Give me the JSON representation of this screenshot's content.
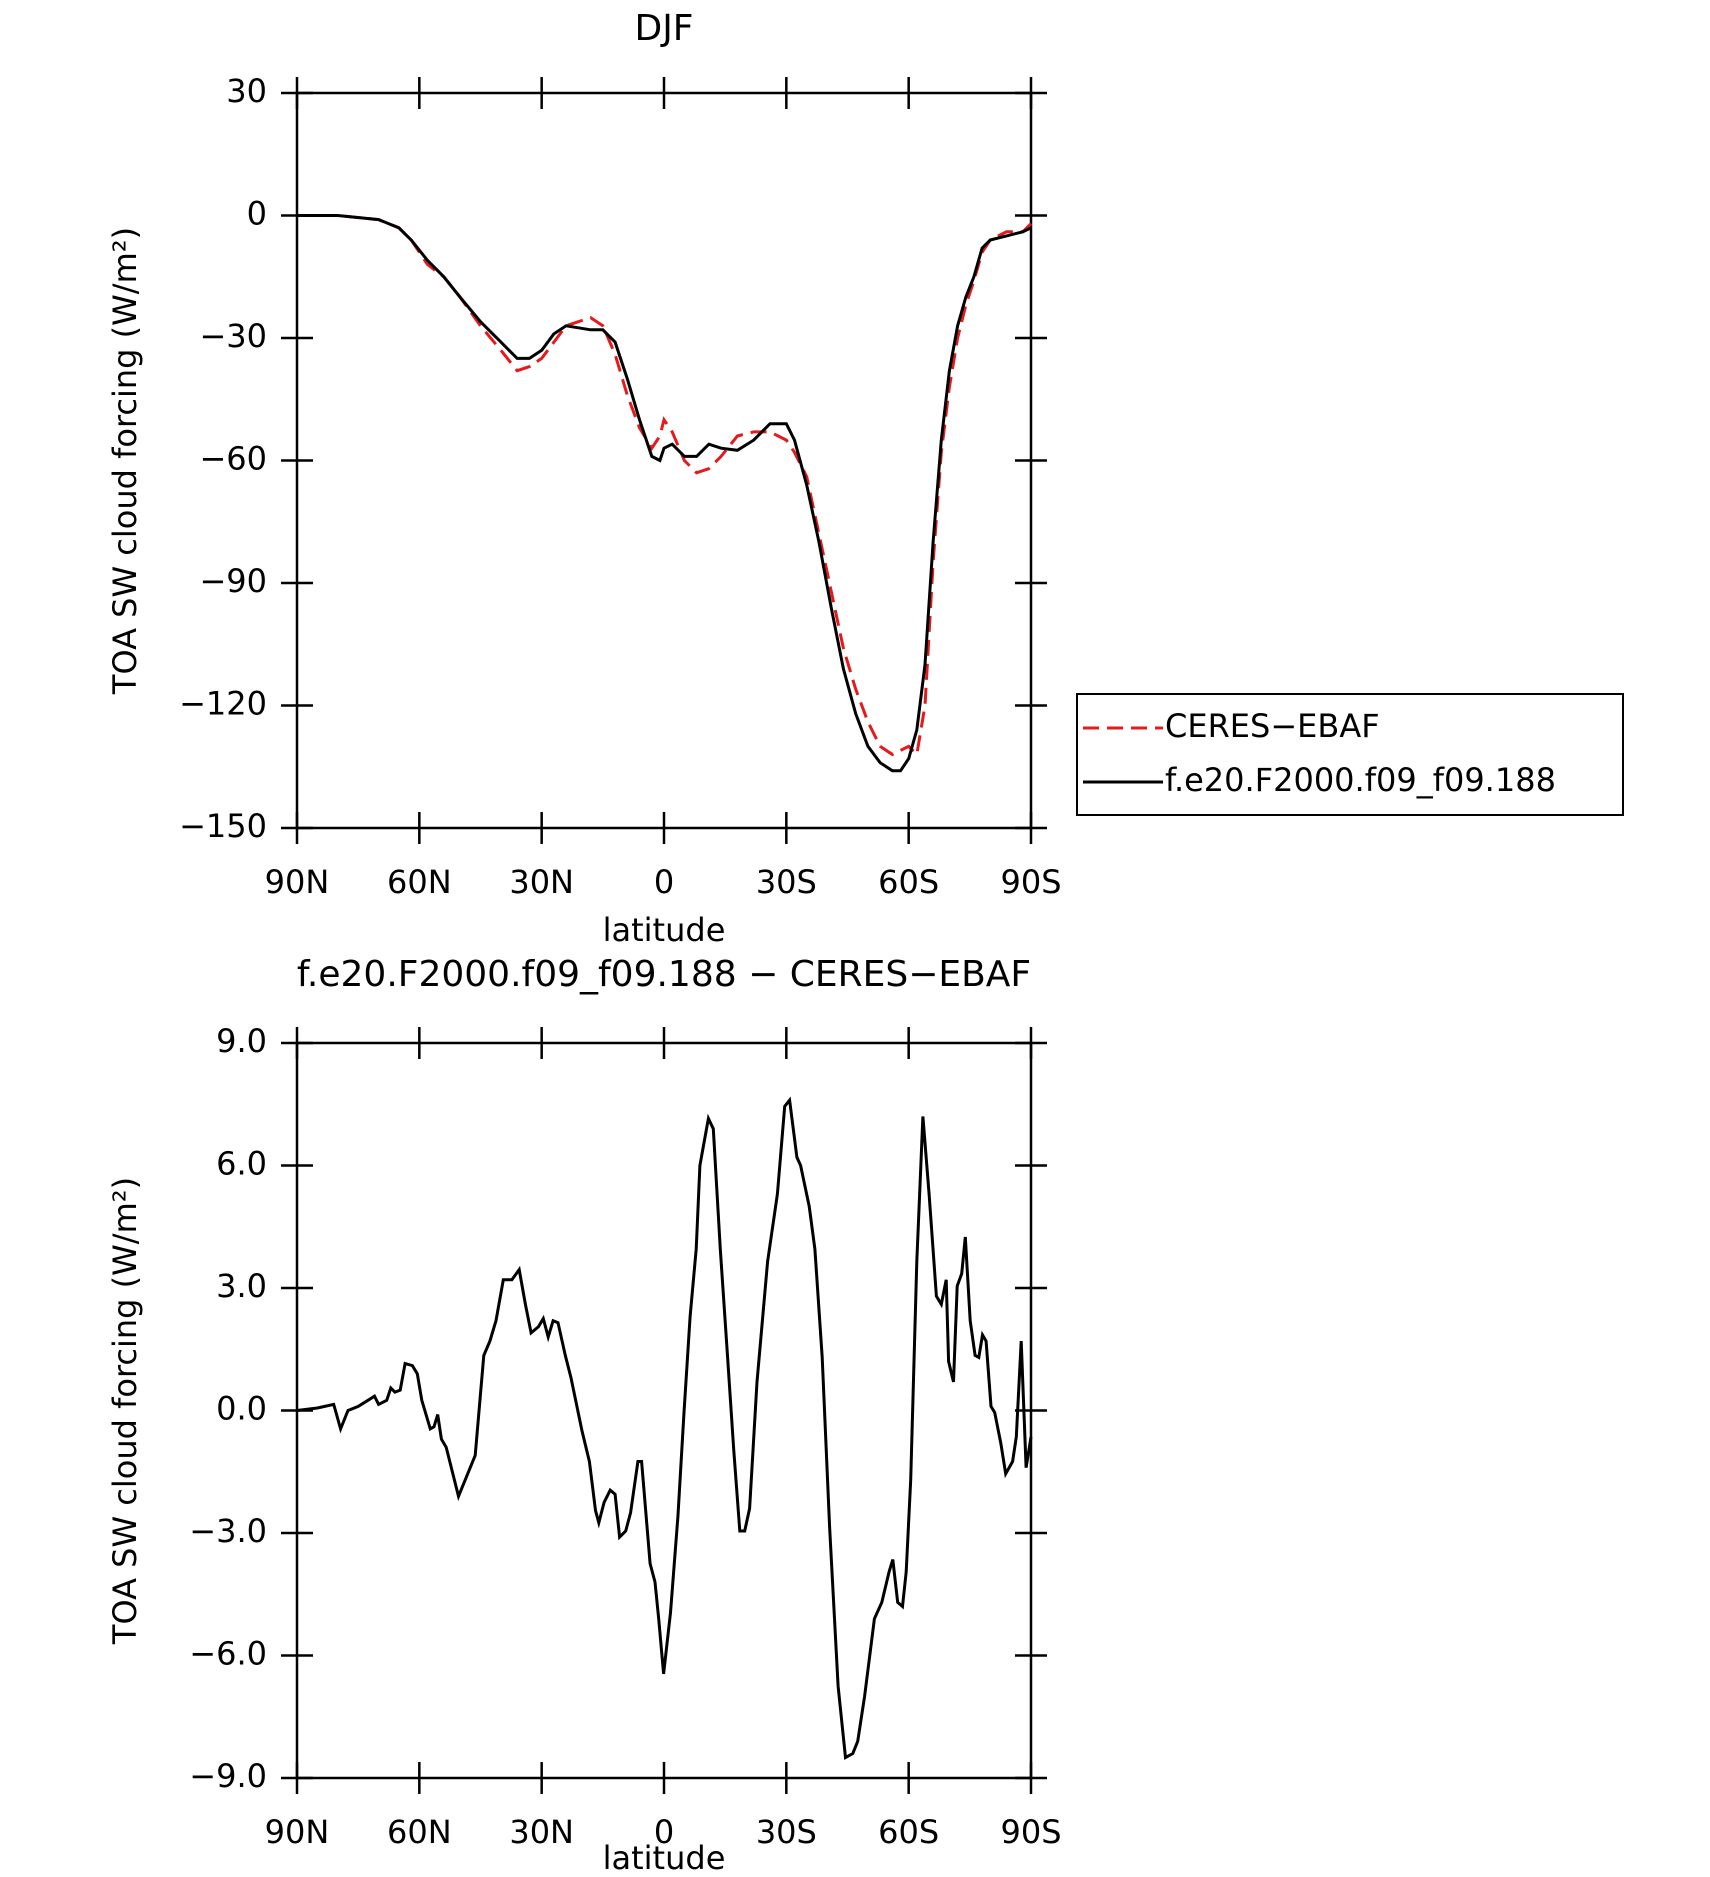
{
  "chart_data": [
    {
      "type": "line",
      "title": "DJF",
      "xlabel": "latitude",
      "ylabel": "TOA SW cloud forcing (W/m²)",
      "x": [
        90,
        80,
        70,
        65,
        62,
        58,
        54,
        50,
        45,
        40,
        36,
        33,
        30,
        27,
        24,
        21,
        18,
        15,
        12,
        9,
        6,
        3,
        1,
        0,
        -2,
        -5,
        -8,
        -11,
        -14,
        -18,
        -22,
        -26,
        -30,
        -32,
        -35,
        -38,
        -41,
        -44,
        -47,
        -50,
        -53,
        -56,
        -58,
        -60,
        -62,
        -64,
        -66,
        -68,
        -70,
        -72,
        -74,
        -76,
        -78,
        -80,
        -84,
        -88,
        -90
      ],
      "series": [
        {
          "name": "CERES−EBAF",
          "color": "#e41a1c",
          "dash": "dashed",
          "values": [
            0,
            0,
            -1,
            -3,
            -6,
            -12,
            -15,
            -20,
            -27,
            -33,
            -38,
            -37,
            -35,
            -31,
            -27,
            -26,
            -25,
            -27,
            -34,
            -44,
            -52,
            -57,
            -54,
            -50,
            -53,
            -60,
            -63,
            -62,
            -59,
            -54,
            -53,
            -53,
            -55,
            -58,
            -64,
            -78,
            -92,
            -106,
            -116,
            -124,
            -130,
            -132,
            -131,
            -130,
            -132,
            -120,
            -85,
            -58,
            -42,
            -30,
            -22,
            -16,
            -9,
            -6,
            -4,
            -4,
            -2
          ]
        },
        {
          "name": "f.e20.F2000.f09_f09.188",
          "color": "#000000",
          "dash": "solid",
          "values": [
            0,
            0,
            -1,
            -3,
            -6,
            -11,
            -15,
            -20,
            -26,
            -31,
            -35,
            -35,
            -33,
            -29,
            -27,
            -27.5,
            -28,
            -28,
            -31,
            -40,
            -50,
            -59,
            -60,
            -57,
            -56,
            -59,
            -59,
            -56,
            -57,
            -57.5,
            -55,
            -51,
            -51,
            -55,
            -66,
            -80,
            -96,
            -111,
            -122,
            -130,
            -134,
            -136,
            -136,
            -133,
            -126,
            -110,
            -80,
            -55,
            -38,
            -27,
            -20,
            -15,
            -8,
            -6,
            -5,
            -4,
            -3
          ]
        }
      ],
      "xlim": [
        90,
        -90
      ],
      "xticks": [
        {
          "value": 90,
          "label": "90N"
        },
        {
          "value": 60,
          "label": "60N"
        },
        {
          "value": 30,
          "label": "30N"
        },
        0,
        {
          "value": -30,
          "label": "30S"
        },
        {
          "value": -60,
          "label": "60S"
        },
        {
          "value": -90,
          "label": "90S"
        }
      ],
      "ylim": [
        -150,
        30
      ],
      "yticks": [
        30,
        0,
        {
          "value": -30,
          "label": "−30"
        },
        {
          "value": -60,
          "label": "−60"
        },
        {
          "value": -90,
          "label": "−90"
        },
        {
          "value": -120,
          "label": "−120"
        },
        {
          "value": -150,
          "label": "−150"
        }
      ],
      "legend": "outside right"
    },
    {
      "type": "line",
      "title": "f.e20.F2000.f09_f09.188 − CERES−EBAF",
      "xlabel": "latitude",
      "ylabel": "TOA SW cloud forcing (W/m²)",
      "x": [
        90,
        85,
        81,
        79.3,
        77.5,
        75,
        71,
        70,
        68,
        67,
        66,
        64.7,
        63.5,
        61.7,
        60.5,
        59.4,
        57.3,
        56.4,
        55.5,
        54.6,
        53.4,
        50.4,
        46.3,
        44.2,
        42.7,
        41.2,
        39.4,
        37.3,
        35.5,
        34,
        32.6,
        30.8,
        29.6,
        28.4,
        27.2,
        26,
        24.2,
        22.8,
        20.1,
        18.3,
        16.8,
        16,
        14.7,
        13.2,
        12,
        10.9,
        9.4,
        8.2,
        6.4,
        5.5,
        3.4,
        2.2,
        1.3,
        0.1,
        -1.6,
        -3.4,
        -4.9,
        -6.4,
        -7.9,
        -8.8,
        -10.9,
        -12.1,
        -13.8,
        -15.6,
        -17.1,
        -18.6,
        -19.8,
        -21,
        -22.8,
        -25.4,
        -27.8,
        -29.6,
        -30.8,
        -32.6,
        -33.5,
        -35.6,
        -37,
        -38.8,
        -40.6,
        -42.7,
        -44.5,
        -46.3,
        -47.5,
        -49.2,
        -51.6,
        -53.4,
        -55.2,
        -56.1,
        -57.3,
        -58.5,
        -59.4,
        -60.5,
        -62,
        -63.5,
        -65,
        -66.8,
        -68,
        -69.2,
        -69.8,
        -71,
        -71.9,
        -73,
        -73.9,
        -75.1,
        -76.3,
        -77.2,
        -78.1,
        -79,
        -80.2,
        -81.1,
        -82.6,
        -83.8,
        -85.5,
        -86.4,
        -87.6,
        -88.8,
        -90
      ],
      "values": [
        0,
        0.06,
        0.15,
        -0.45,
        0,
        0.1,
        0.35,
        0.15,
        0.25,
        0.55,
        0.45,
        0.5,
        1.15,
        1.1,
        0.9,
        0.25,
        -0.45,
        -0.4,
        -0.1,
        -0.7,
        -0.9,
        -2.1,
        -1.1,
        1.35,
        1.7,
        2.2,
        3.2,
        3.2,
        3.45,
        2.6,
        1.9,
        2.05,
        2.25,
        1.8,
        2.2,
        2.15,
        1.35,
        0.8,
        -0.5,
        -1.25,
        -2.45,
        -2.75,
        -2.25,
        -1.95,
        -2.05,
        -3.1,
        -2.95,
        -2.5,
        -1.25,
        -1.25,
        -3.75,
        -4.2,
        -5.1,
        -6.45,
        -4.95,
        -2.6,
        -0.05,
        2.3,
        3.95,
        6,
        7.15,
        6.9,
        3.95,
        1.3,
        -0.95,
        -2.95,
        -2.95,
        -2.4,
        0.7,
        3.65,
        5.3,
        7.45,
        7.6,
        6.2,
        6,
        5,
        3.95,
        1.3,
        -2.85,
        -6.75,
        -8.5,
        -8.4,
        -8.1,
        -7,
        -5.1,
        -4.7,
        -3.95,
        -3.65,
        -4.7,
        -4.8,
        -3.95,
        -1.7,
        3.65,
        7.2,
        5.3,
        2.8,
        2.6,
        3.2,
        1.2,
        0.7,
        3.05,
        3.35,
        4.25,
        2.2,
        1.35,
        1.3,
        1.85,
        1.7,
        0.1,
        -0.05,
        -0.8,
        -1.55,
        -1.25,
        -0.65,
        1.7,
        -1.4,
        -0.65
      ],
      "color": "#000000",
      "xlim": [
        90,
        -90
      ],
      "xticks": [
        {
          "value": 90,
          "label": "90N"
        },
        {
          "value": 60,
          "label": "60N"
        },
        {
          "value": 30,
          "label": "30N"
        },
        0,
        {
          "value": -30,
          "label": "30S"
        },
        {
          "value": -60,
          "label": "60S"
        },
        {
          "value": -90,
          "label": "90S"
        }
      ],
      "ylim": [
        -9,
        9
      ],
      "yticks": [
        {
          "value": 9,
          "label": "9.0"
        },
        {
          "value": 6,
          "label": "6.0"
        },
        {
          "value": 3,
          "label": "3.0"
        },
        {
          "value": 0,
          "label": "0.0"
        },
        {
          "value": -3,
          "label": "−3.0"
        },
        {
          "value": -6,
          "label": "−6.0"
        },
        {
          "value": -9,
          "label": "−9.0"
        }
      ]
    }
  ]
}
